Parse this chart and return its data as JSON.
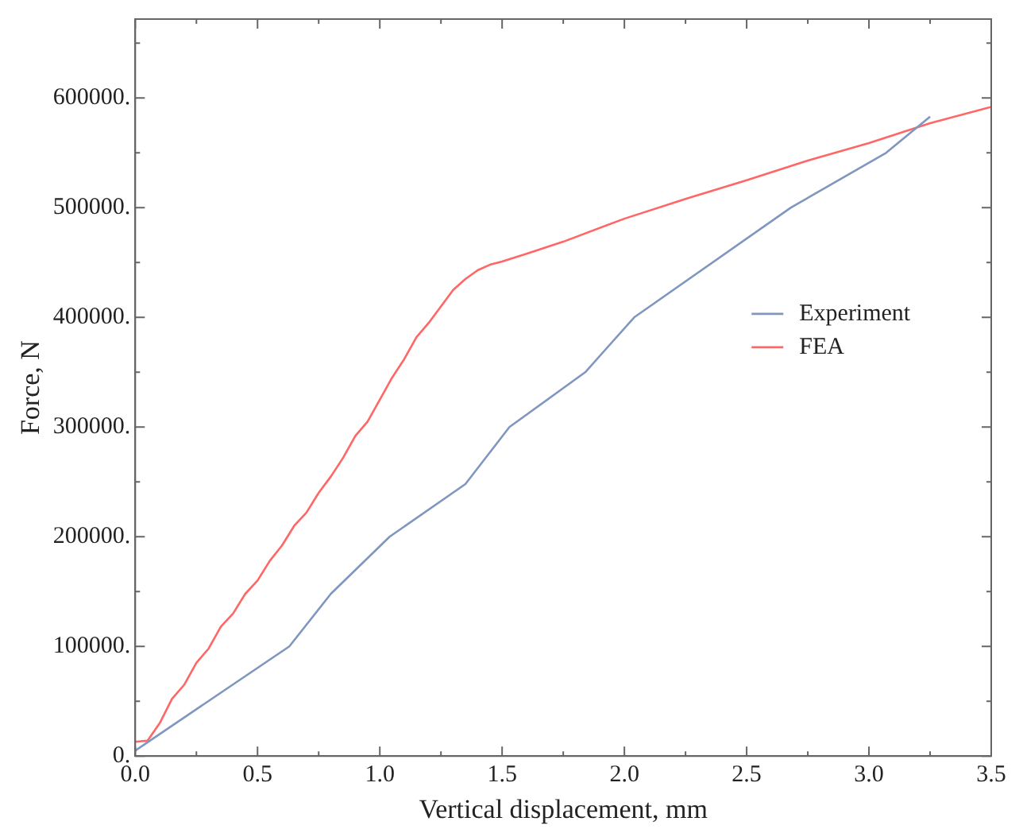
{
  "chart_data": {
    "type": "line",
    "xlabel": "Vertical displacement, mm",
    "ylabel": "Force, N",
    "xlim": [
      0,
      3.5
    ],
    "ylim": [
      0,
      672000
    ],
    "xticks": [
      {
        "value": 0,
        "label": "0.0"
      },
      {
        "value": 0.25,
        "label": null
      },
      {
        "value": 0.5,
        "label": "0.5"
      },
      {
        "value": 0.75,
        "label": null
      },
      {
        "value": 1,
        "label": "1.0"
      },
      {
        "value": 1.25,
        "label": null
      },
      {
        "value": 1.5,
        "label": "1.5"
      },
      {
        "value": 1.75,
        "label": null
      },
      {
        "value": 2,
        "label": "2.0"
      },
      {
        "value": 2.25,
        "label": null
      },
      {
        "value": 2.5,
        "label": "2.5"
      },
      {
        "value": 2.75,
        "label": null
      },
      {
        "value": 3,
        "label": "3.0"
      },
      {
        "value": 3.25,
        "label": null
      },
      {
        "value": 3.5,
        "label": "3.5"
      }
    ],
    "yticks": [
      {
        "value": 0,
        "label": "0."
      },
      {
        "value": 50000,
        "label": null
      },
      {
        "value": 100000,
        "label": "100000."
      },
      {
        "value": 150000,
        "label": null
      },
      {
        "value": 200000,
        "label": "200000."
      },
      {
        "value": 250000,
        "label": null
      },
      {
        "value": 300000,
        "label": "300000."
      },
      {
        "value": 350000,
        "label": null
      },
      {
        "value": 400000,
        "label": "400000."
      },
      {
        "value": 450000,
        "label": null
      },
      {
        "value": 500000,
        "label": "500000."
      },
      {
        "value": 550000,
        "label": null
      },
      {
        "value": 600000,
        "label": "600000."
      },
      {
        "value": 650000,
        "label": null
      }
    ],
    "grid": false,
    "legend": "right",
    "marker": "none",
    "line_style": "solid",
    "series": [
      {
        "name": "Experiment",
        "color": "#7f97bf",
        "x": [
          0,
          0.63,
          0.8,
          1.04,
          1.35,
          1.53,
          1.84,
          2.04,
          2.68,
          3.07,
          3.25
        ],
        "values": [
          5000,
          100000,
          148000,
          200000,
          248000,
          300000,
          350000,
          400000,
          500000,
          550000,
          583000
        ]
      },
      {
        "name": "FEA",
        "color": "#ff6666",
        "x": [
          0,
          0.05,
          0.1,
          0.15,
          0.2,
          0.25,
          0.3,
          0.35,
          0.4,
          0.45,
          0.5,
          0.55,
          0.6,
          0.65,
          0.7,
          0.75,
          0.8,
          0.85,
          0.9,
          0.95,
          1,
          1.05,
          1.1,
          1.15,
          1.2,
          1.25,
          1.3,
          1.35,
          1.4,
          1.45,
          1.5,
          1.6,
          1.75,
          2,
          2.25,
          2.5,
          2.75,
          3,
          3.25,
          3.5
        ],
        "values": [
          13000,
          14000,
          30000,
          52000,
          65000,
          85000,
          98000,
          118000,
          130000,
          148000,
          160000,
          178000,
          192000,
          210000,
          222000,
          240000,
          255000,
          272000,
          292000,
          305000,
          325000,
          345000,
          362000,
          382000,
          395000,
          410000,
          425000,
          435000,
          443000,
          448000,
          451000,
          458000,
          469000,
          490000,
          508000,
          525000,
          543000,
          559000,
          577000,
          592000
        ]
      }
    ]
  }
}
